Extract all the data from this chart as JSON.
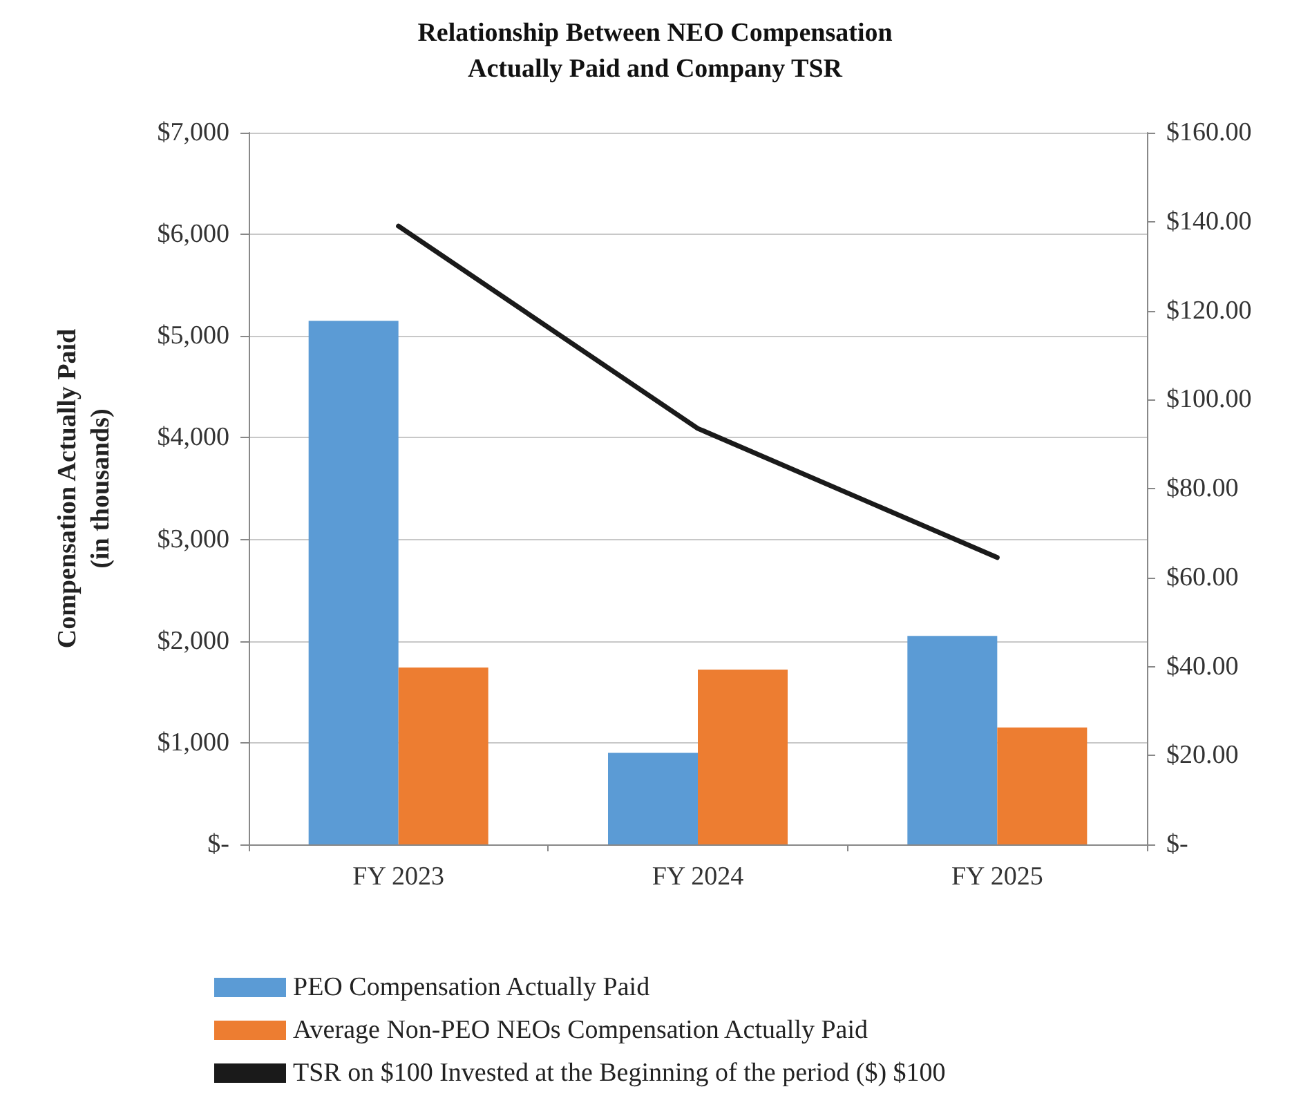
{
  "chart_data": {
    "type": "bar",
    "title": "Relationship Between NEO Compensation\nActually Paid and Company TSR",
    "ylabel": "Compensation Actually Paid\n(in thousands)",
    "categories": [
      "FY 2023",
      "FY 2024",
      "FY 2025"
    ],
    "series": [
      {
        "name": "PEO Compensation Actually Paid",
        "color": "#5b9bd5",
        "values": [
          5150,
          900,
          2050
        ]
      },
      {
        "name": "Average Non-PEO NEOs Compensation Actually Paid",
        "color": "#ed7d31",
        "values": [
          1740,
          1720,
          1150
        ]
      },
      {
        "name": "TSR on $100 Invested at the Beginning of the period ($) $100",
        "type": "line",
        "axis": "y2",
        "color": "#1a1a1a",
        "values": [
          139,
          93.5,
          64.5
        ]
      }
    ],
    "ylim": [
      0,
      7000
    ],
    "yticks": [
      {
        "value": 0,
        "label": "$-"
      },
      {
        "value": 1000,
        "label": "$1,000"
      },
      {
        "value": 2000,
        "label": "$2,000"
      },
      {
        "value": 3000,
        "label": "$3,000"
      },
      {
        "value": 4000,
        "label": "$4,000"
      },
      {
        "value": 5000,
        "label": "$5,000"
      },
      {
        "value": 6000,
        "label": "$6,000"
      },
      {
        "value": 7000,
        "label": "$7,000"
      }
    ],
    "y2lim": [
      0,
      160
    ],
    "y2ticks": [
      {
        "value": 0,
        "label": "$-"
      },
      {
        "value": 20,
        "label": "$20.00"
      },
      {
        "value": 40,
        "label": "$40.00"
      },
      {
        "value": 60,
        "label": "$60.00"
      },
      {
        "value": 80,
        "label": "$80.00"
      },
      {
        "value": 100,
        "label": "$100.00"
      },
      {
        "value": 120,
        "label": "$120.00"
      },
      {
        "value": 140,
        "label": "$140.00"
      },
      {
        "value": 160,
        "label": "$160.00"
      }
    ],
    "grid": "y",
    "legend": "bottom",
    "marker": "none",
    "line_style": "solid"
  }
}
